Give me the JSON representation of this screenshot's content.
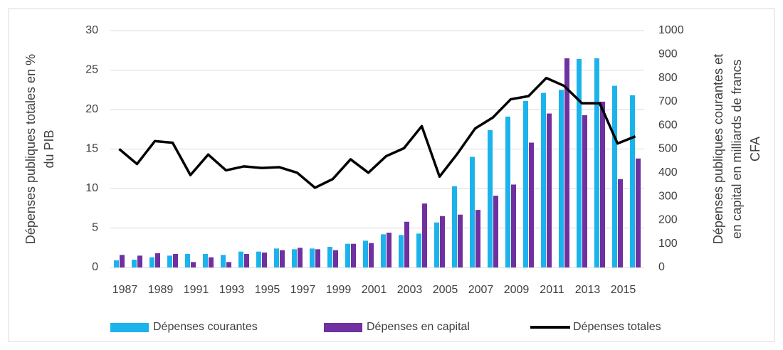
{
  "chart_data": {
    "type": "bar",
    "categories": [
      "1987",
      null,
      "1989",
      null,
      "1991",
      null,
      "1993",
      null,
      "1995",
      null,
      "1997",
      null,
      "1999",
      null,
      "2001",
      null,
      "2003",
      null,
      "2005",
      null,
      "2007",
      null,
      "2009",
      null,
      "2011",
      null,
      "2013",
      null,
      "2015",
      null
    ],
    "y_label": [
      "Dépenses publiques totales en %",
      "du PIB"
    ],
    "y2_label": [
      "Dépenses publiques courantes et",
      "en capital en milliards de francs",
      "CFA"
    ],
    "ylim": [
      0,
      30
    ],
    "yticks": [
      0,
      5,
      10,
      15,
      20,
      25,
      30
    ],
    "y2lim": [
      0,
      1000
    ],
    "y2ticks": [
      0,
      100,
      200,
      300,
      400,
      500,
      600,
      700,
      800,
      900,
      1000
    ],
    "grid": true,
    "legend": "bottom",
    "series": [
      {
        "name": "Dépenses courantes",
        "type": "bar",
        "axis": "y2",
        "color": "#1cb3ec",
        "values": [
          30,
          33,
          43,
          50,
          57,
          57,
          53,
          67,
          67,
          80,
          77,
          80,
          87,
          100,
          113,
          140,
          137,
          143,
          190,
          343,
          467,
          580,
          637,
          703,
          737,
          750,
          880,
          883,
          767,
          727
        ]
      },
      {
        "name": "Dépenses en capital",
        "type": "bar",
        "axis": "y2",
        "color": "#7030a0",
        "values": [
          53,
          50,
          60,
          57,
          23,
          43,
          23,
          57,
          63,
          73,
          83,
          77,
          73,
          100,
          103,
          147,
          193,
          270,
          217,
          223,
          243,
          303,
          350,
          527,
          650,
          883,
          643,
          700,
          373,
          460
        ]
      },
      {
        "name": "Dépenses totales",
        "type": "line",
        "axis": "y",
        "color": "#000000",
        "values": [
          15.0,
          13.1,
          16.0,
          15.8,
          11.7,
          14.3,
          12.3,
          12.8,
          12.6,
          12.7,
          12.0,
          10.1,
          11.2,
          13.7,
          12.0,
          14.1,
          15.1,
          17.9,
          11.5,
          14.4,
          17.6,
          19.0,
          21.3,
          21.7,
          24.0,
          23.0,
          20.8,
          20.8,
          15.7,
          16.6
        ]
      }
    ]
  }
}
